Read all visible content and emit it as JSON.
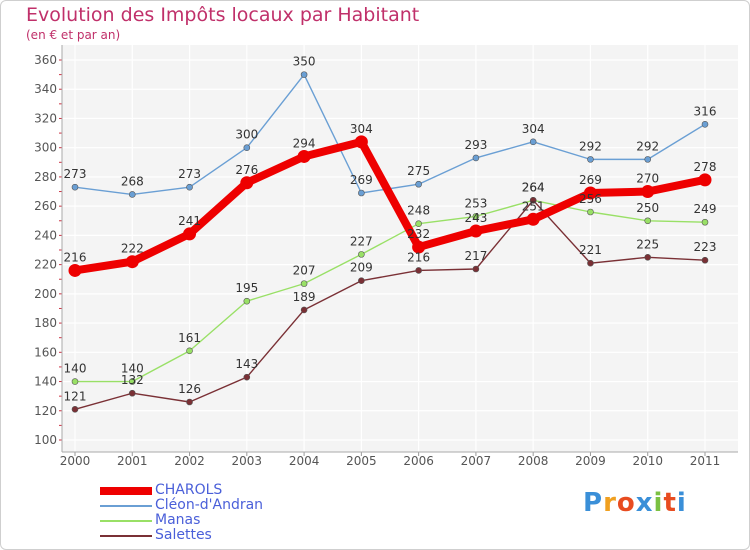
{
  "title": "Evolution des Impôts locaux par Habitant",
  "subtitle": "(en € et par an)",
  "logo_text": "Proxiti",
  "chart_data": {
    "type": "line",
    "x": [
      "2000",
      "2001",
      "2002",
      "2003",
      "2004",
      "2005",
      "2006",
      "2007",
      "2008",
      "2009",
      "2010",
      "2011"
    ],
    "ylim": [
      100,
      360
    ],
    "yticks": [
      100,
      120,
      140,
      160,
      180,
      200,
      220,
      240,
      260,
      280,
      300,
      320,
      340,
      360
    ],
    "grid": true,
    "legend_position": "bottom-left",
    "series": [
      {
        "name": "Cléon-d'Andran",
        "color": "#6a9fd4",
        "values": [
          273,
          268,
          273,
          300,
          350,
          269,
          275,
          293,
          304,
          292,
          292,
          316
        ]
      },
      {
        "name": "Manas",
        "color": "#99e066",
        "values": [
          140,
          140,
          161,
          195,
          207,
          227,
          248,
          253,
          264,
          256,
          250,
          249
        ]
      },
      {
        "name": "Salettes",
        "color": "#7a3035",
        "values": [
          121,
          132,
          126,
          143,
          189,
          209,
          216,
          217,
          264,
          221,
          225,
          223
        ]
      },
      {
        "name": "CHAROLS",
        "color": "#ee0000",
        "values": [
          216,
          222,
          241,
          276,
          294,
          304,
          232,
          243,
          251,
          269,
          270,
          278
        ]
      }
    ],
    "legend_order": [
      "CHAROLS",
      "Cléon-d'Andran",
      "Manas",
      "Salettes"
    ]
  }
}
